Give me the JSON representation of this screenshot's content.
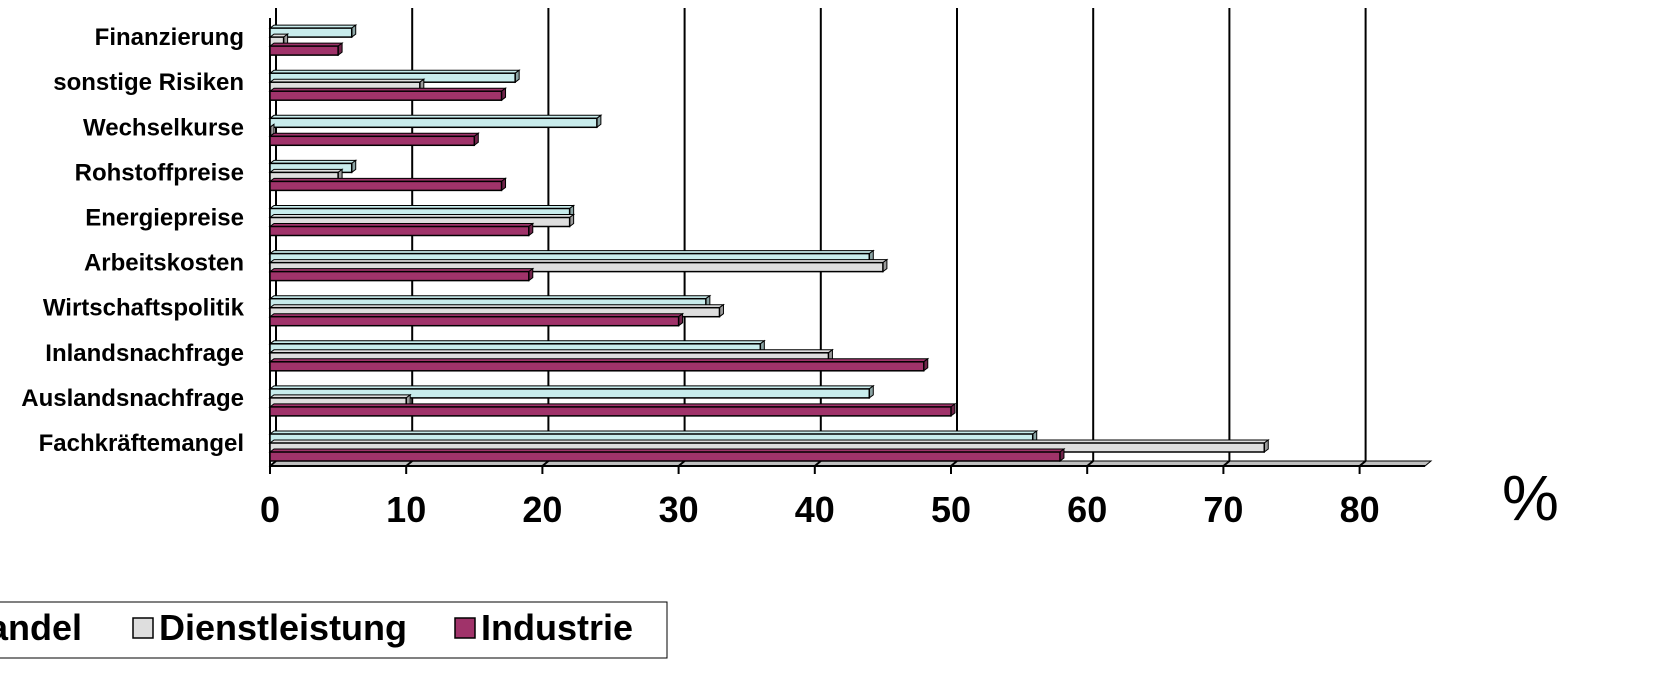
{
  "chart_data": {
    "type": "bar",
    "orientation": "horizontal",
    "style": "3d-clustered",
    "categories": [
      "Fachkräftemangel",
      "Auslandsnachfrage",
      "Inlandsnachfrage",
      "Wirtschaftspolitik",
      "Arbeitskosten",
      "Energiepreise",
      "Rohstoffpreise",
      "Wechselkurse",
      "sonstige Risiken",
      "Finanzierung"
    ],
    "series": [
      {
        "name": "Handel",
        "color": "#c8ecec",
        "values": [
          56,
          44,
          36,
          32,
          44,
          22,
          6,
          24,
          18,
          6
        ]
      },
      {
        "name": "Dienstleistung",
        "color": "#dedede",
        "values": [
          73,
          10,
          41,
          33,
          45,
          22,
          5,
          0,
          11,
          1
        ]
      },
      {
        "name": "Industrie",
        "color": "#a0336a",
        "values": [
          58,
          50,
          48,
          30,
          19,
          19,
          17,
          15,
          17,
          5
        ]
      }
    ],
    "x_ticks": [
      "0",
      "10",
      "20",
      "30",
      "40",
      "50",
      "60",
      "70",
      "80"
    ],
    "xlim": [
      0,
      80
    ],
    "unit": "%",
    "gridlines": true,
    "legend": {
      "position": "bottom-left",
      "visible_partial_first": "andel"
    }
  }
}
